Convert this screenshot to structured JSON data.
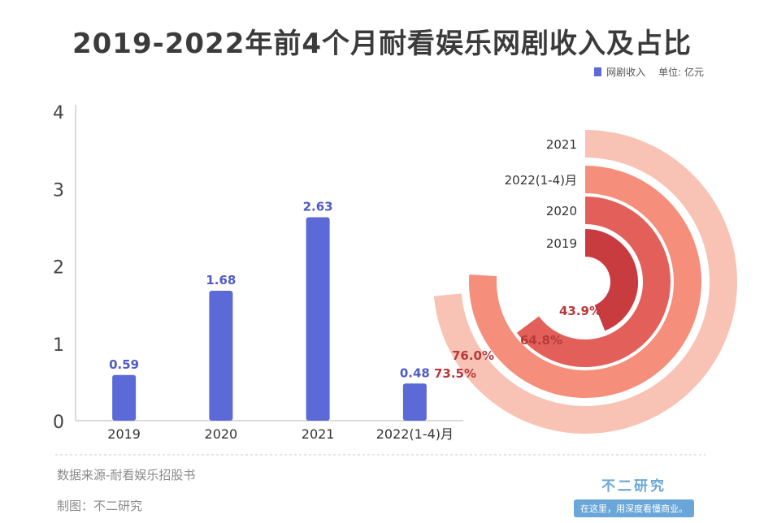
{
  "title": "2019-2022年前4个月耐看娱乐网剧收入及占比",
  "legend": {
    "series_label": "网剧收入",
    "unit": "单位: 亿元"
  },
  "chart_data": [
    {
      "type": "bar",
      "categories": [
        "2019",
        "2020",
        "2021",
        "2022(1-4)月"
      ],
      "series": [
        {
          "name": "网剧收入",
          "values": [
            0.59,
            1.68,
            2.63,
            0.48
          ]
        }
      ],
      "value_labels": [
        "0.59",
        "1.68",
        "2.63",
        "0.48"
      ],
      "yticks": [
        "0",
        "1",
        "2",
        "3",
        "4"
      ],
      "ylim": [
        0,
        4
      ],
      "grid": false,
      "legend_position": "top-right",
      "color": "#5b6ad6"
    },
    {
      "type": "pie",
      "style": "concentric radial bars",
      "categories": [
        "2021",
        "2022(1-4)月",
        "2020",
        "2019"
      ],
      "values": [
        73.5,
        76.0,
        64.8,
        43.9
      ],
      "value_labels": [
        "73.5%",
        "76.0%",
        "64.8%",
        "43.9%"
      ],
      "colors": [
        "#f8c3b5",
        "#f58e7a",
        "#e3605a",
        "#c83b3e"
      ]
    }
  ],
  "footer": {
    "source": "数据来源-耐看娱乐招股书",
    "maker": "制图：不二研究"
  },
  "brand": {
    "name": "不二研究",
    "tagline": "在这里，用深度看懂商业。"
  }
}
